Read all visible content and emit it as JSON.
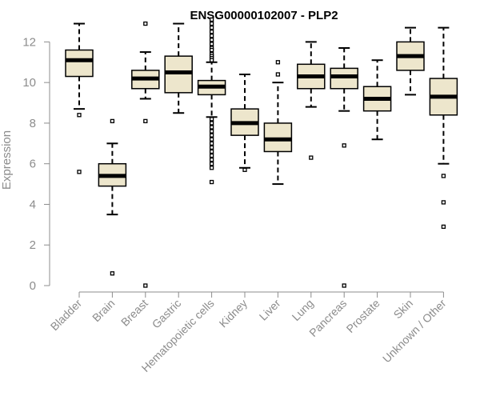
{
  "chart_data": {
    "type": "boxplot",
    "title": "ENSG00000102007 - PLP2",
    "xlabel": "",
    "ylabel": "Expression",
    "ylim": [
      0,
      13
    ],
    "yticks": [
      0,
      2,
      4,
      6,
      8,
      10,
      12
    ],
    "box_fill": "#ede6cc",
    "line_color": "#000000",
    "axis_color": "#8c8c8c",
    "categories": [
      "Bladder",
      "Brain",
      "Breast",
      "Gastric",
      "Hematopoietic cells",
      "Kidney",
      "Liver",
      "Lung",
      "Pancreas",
      "Prostate",
      "Skin",
      "Unknown / Other"
    ],
    "boxes": [
      {
        "whisker_low": 8.7,
        "q1": 10.3,
        "median": 11.1,
        "q3": 11.6,
        "whisker_high": 12.9,
        "outliers": [
          8.4,
          5.6
        ]
      },
      {
        "whisker_low": 3.5,
        "q1": 4.9,
        "median": 5.4,
        "q3": 6.0,
        "whisker_high": 7.0,
        "outliers": [
          8.1,
          0.6
        ]
      },
      {
        "whisker_low": 9.2,
        "q1": 9.7,
        "median": 10.2,
        "q3": 10.6,
        "whisker_high": 11.5,
        "outliers": [
          12.9,
          8.1,
          0.0
        ]
      },
      {
        "whisker_low": 8.5,
        "q1": 9.5,
        "median": 10.5,
        "q3": 11.3,
        "whisker_high": 12.9,
        "outliers": []
      },
      {
        "whisker_low": 8.3,
        "q1": 9.4,
        "median": 9.8,
        "q3": 10.1,
        "whisker_high": 11.0,
        "outliers": [
          13.1,
          12.9,
          12.7,
          12.5,
          12.3,
          12.1,
          11.9,
          11.7,
          11.6,
          11.4,
          11.3,
          11.2,
          11.1,
          8.2,
          8.0,
          7.8,
          7.6,
          7.4,
          7.2,
          7.0,
          6.8,
          6.6,
          6.4,
          6.2,
          6.0,
          5.8,
          5.1
        ]
      },
      {
        "whisker_low": 5.8,
        "q1": 7.4,
        "median": 8.0,
        "q3": 8.7,
        "whisker_high": 10.4,
        "outliers": [
          5.7
        ]
      },
      {
        "whisker_low": 5.0,
        "q1": 6.6,
        "median": 7.2,
        "q3": 8.0,
        "whisker_high": 10.0,
        "outliers": [
          10.4,
          11.0
        ]
      },
      {
        "whisker_low": 8.8,
        "q1": 9.7,
        "median": 10.3,
        "q3": 10.9,
        "whisker_high": 12.0,
        "outliers": [
          6.3
        ]
      },
      {
        "whisker_low": 8.6,
        "q1": 9.7,
        "median": 10.3,
        "q3": 10.7,
        "whisker_high": 11.7,
        "outliers": [
          6.9,
          0.0
        ]
      },
      {
        "whisker_low": 7.2,
        "q1": 8.6,
        "median": 9.2,
        "q3": 9.8,
        "whisker_high": 11.1,
        "outliers": []
      },
      {
        "whisker_low": 9.4,
        "q1": 10.6,
        "median": 11.3,
        "q3": 12.0,
        "whisker_high": 12.7,
        "outliers": []
      },
      {
        "whisker_low": 6.0,
        "q1": 8.4,
        "median": 9.3,
        "q3": 10.2,
        "whisker_high": 12.7,
        "outliers": [
          5.4,
          4.1,
          2.9
        ]
      }
    ]
  }
}
